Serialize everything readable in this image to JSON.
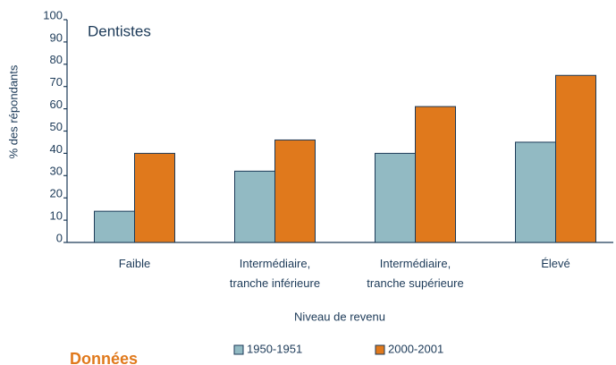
{
  "chart_data": {
    "type": "bar",
    "title": "Dentistes",
    "y_label": "% des répondants",
    "x_label": "Niveau de revenu",
    "categories": [
      "Faible",
      "Intermédiaire,\ntranche inférieure",
      "Intermédiaire,\ntranche supérieure",
      "Élevé"
    ],
    "series": [
      {
        "name": "1950-1951",
        "color": "#92bac3",
        "values": [
          14,
          32,
          40,
          45
        ]
      },
      {
        "name": "2000-2001",
        "color": "#e0791c",
        "values": [
          40,
          46,
          61,
          75
        ]
      }
    ],
    "ylim": [
      0,
      100
    ],
    "yticks": [
      0,
      10,
      20,
      30,
      40,
      50,
      60,
      70,
      80,
      90,
      100
    ],
    "grid": false
  },
  "footer_text": "Données"
}
